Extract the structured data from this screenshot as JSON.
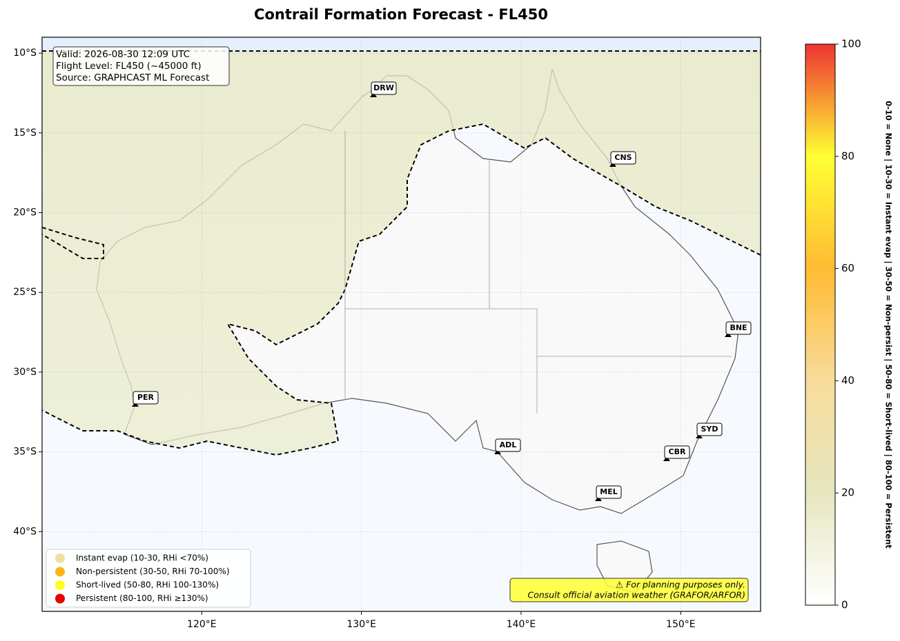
{
  "title": "Contrail Formation Forecast - FL450",
  "map": {
    "lon_range": [
      110,
      155
    ],
    "lat_range": [
      -45,
      -9
    ],
    "lon_ticks": [
      {
        "value": 120,
        "label": "120°E"
      },
      {
        "value": 130,
        "label": "130°E"
      },
      {
        "value": 140,
        "label": "140°E"
      },
      {
        "value": 150,
        "label": "150°E"
      }
    ],
    "lat_ticks": [
      {
        "value": -10,
        "label": "10°S"
      },
      {
        "value": -15,
        "label": "15°S"
      },
      {
        "value": -20,
        "label": "20°S"
      },
      {
        "value": -25,
        "label": "25°S"
      },
      {
        "value": -30,
        "label": "30°S"
      },
      {
        "value": -35,
        "label": "35°S"
      },
      {
        "value": -40,
        "label": "40°S"
      }
    ],
    "grid": true
  },
  "info": [
    "Valid: 2026-08-30 12:09 UTC",
    "Flight Level: FL450 (~45000 ft)",
    "Source: GRAPHCAST ML Forecast"
  ],
  "cities": [
    "DRW",
    "CNS",
    "BNE",
    "PER",
    "ADL",
    "SYD",
    "CBR",
    "MEL"
  ],
  "legend": [
    {
      "name": "Instant evap (10-30, RHi <70%)",
      "color": "#f0e0a0"
    },
    {
      "name": "Non-persistent (30-50, RHi 70-100%)",
      "color": "#ffb31a"
    },
    {
      "name": "Short-lived (50-80, RHi 100-130%)",
      "color": "#ffff1a"
    },
    {
      "name": "Persistent (80-100, RHi ≥130%)",
      "color": "#e60000"
    }
  ],
  "warning": [
    "⚠ For planning purposes only.",
    "Consult official aviation weather (GRAFOR/ARFOR)"
  ],
  "colorbar": {
    "range": [
      0,
      100
    ],
    "ticks": [
      0,
      20,
      40,
      60,
      80,
      100
    ],
    "label": "0-10 = None  |  10-30 = Instant evap  |  30-50 = Non-persist  |  50-80 = Short-lived  |  80-100 = Persistent"
  }
}
